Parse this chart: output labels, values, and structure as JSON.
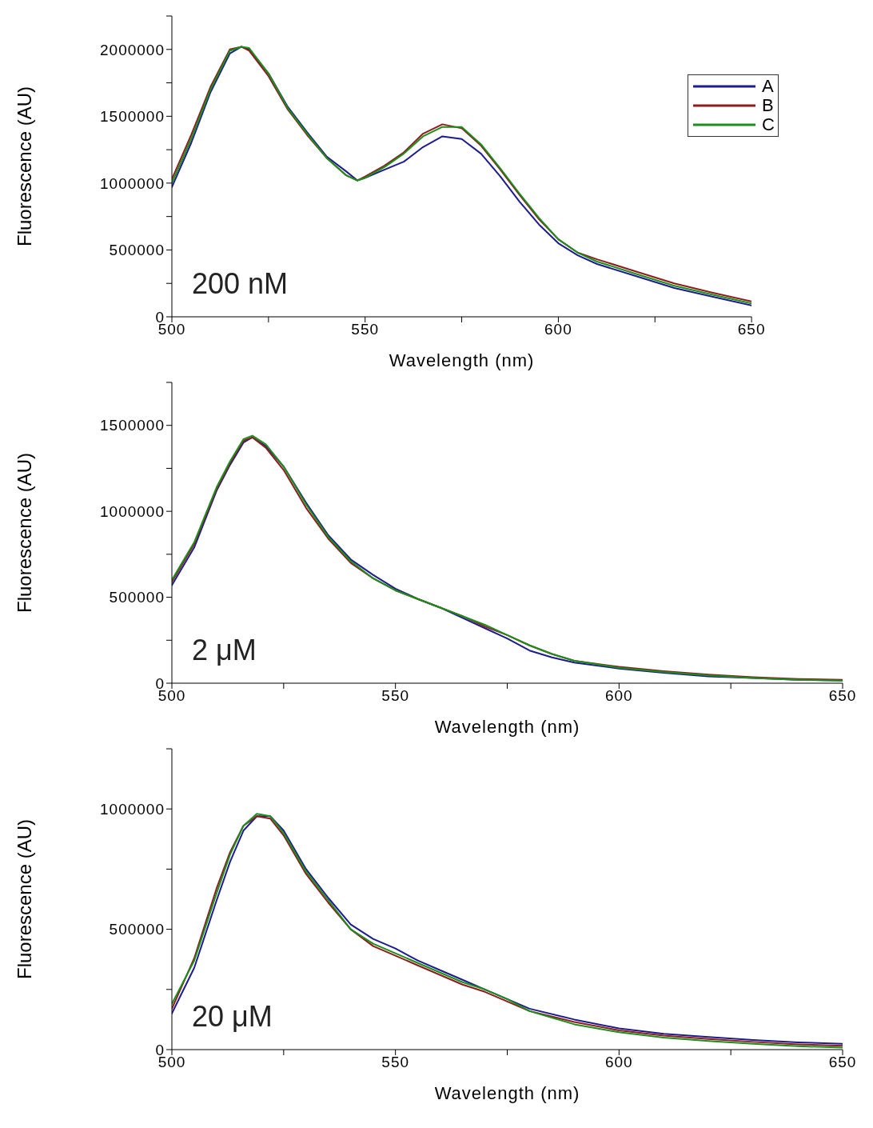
{
  "chart_data": [
    {
      "type": "line",
      "xlabel": "Wavelength (nm)",
      "ylabel": "Fluorescence (AU)",
      "annotations": [
        "200 nM"
      ],
      "legend": "top right",
      "grid": false,
      "line_style": "solid",
      "marker": "none",
      "xlim": [
        500,
        650
      ],
      "xticks": [
        500,
        {
          "value": 525,
          "label": null
        },
        550,
        {
          "value": 575,
          "label": null
        },
        600,
        {
          "value": 625,
          "label": null
        },
        650
      ],
      "ylim": [
        0,
        2250000
      ],
      "yticks": [
        0,
        {
          "value": 250000,
          "label": null
        },
        500000,
        {
          "value": 750000,
          "label": null
        },
        1000000,
        {
          "value": 1250000,
          "label": null
        },
        1500000,
        {
          "value": 1750000,
          "label": null
        },
        2000000,
        {
          "value": 2250000,
          "label": null
        }
      ],
      "x": [
        500,
        505,
        510,
        515,
        518,
        520,
        525,
        530,
        535,
        540,
        545,
        548,
        550,
        555,
        560,
        565,
        570,
        575,
        580,
        585,
        590,
        595,
        600,
        605,
        610,
        620,
        630,
        640,
        650
      ],
      "series": [
        {
          "name": "A",
          "color": "#1c1c8e",
          "values": [
            970000,
            1300000,
            1680000,
            1970000,
            2020000,
            2000000,
            1820000,
            1570000,
            1380000,
            1200000,
            1090000,
            1020000,
            1040000,
            1100000,
            1160000,
            1270000,
            1350000,
            1330000,
            1220000,
            1050000,
            860000,
            690000,
            550000,
            460000,
            395000,
            305000,
            215000,
            150000,
            85000
          ]
        },
        {
          "name": "B",
          "color": "#8e1c1c",
          "values": [
            1030000,
            1360000,
            1720000,
            2000000,
            2020000,
            1990000,
            1800000,
            1550000,
            1360000,
            1190000,
            1060000,
            1020000,
            1050000,
            1130000,
            1230000,
            1370000,
            1440000,
            1410000,
            1280000,
            1100000,
            910000,
            730000,
            580000,
            480000,
            430000,
            340000,
            250000,
            180000,
            115000
          ]
        },
        {
          "name": "C",
          "color": "#1c8e1c",
          "values": [
            1000000,
            1330000,
            1700000,
            1990000,
            2020000,
            2010000,
            1820000,
            1560000,
            1370000,
            1190000,
            1060000,
            1020000,
            1040000,
            1120000,
            1220000,
            1350000,
            1420000,
            1420000,
            1290000,
            1110000,
            920000,
            740000,
            580000,
            480000,
            413000,
            322000,
            232000,
            165000,
            100000
          ]
        }
      ]
    },
    {
      "type": "line",
      "xlabel": "Wavelength (nm)",
      "ylabel": "Fluorescence (AU)",
      "annotations": [
        "2 μM"
      ],
      "grid": false,
      "line_style": "solid",
      "marker": "none",
      "xlim": [
        500,
        650
      ],
      "xticks": [
        500,
        {
          "value": 525,
          "label": null
        },
        550,
        {
          "value": 575,
          "label": null
        },
        600,
        {
          "value": 625,
          "label": null
        },
        650
      ],
      "ylim": [
        0,
        1750000
      ],
      "yticks": [
        0,
        {
          "value": 250000,
          "label": null
        },
        500000,
        {
          "value": 750000,
          "label": null
        },
        1000000,
        {
          "value": 1250000,
          "label": null
        },
        1500000,
        {
          "value": 1750000,
          "label": null
        }
      ],
      "x": [
        500,
        505,
        510,
        513,
        516,
        518,
        521,
        525,
        530,
        535,
        540,
        545,
        550,
        555,
        560,
        565,
        570,
        575,
        580,
        585,
        590,
        600,
        610,
        620,
        630,
        640,
        650
      ],
      "series": [
        {
          "color": "#1c1c8e",
          "values": [
            570000,
            790000,
            1120000,
            1270000,
            1400000,
            1430000,
            1380000,
            1260000,
            1050000,
            860000,
            720000,
            630000,
            550000,
            490000,
            440000,
            380000,
            320000,
            260000,
            190000,
            150000,
            120000,
            85000,
            60000,
            40000,
            30000,
            20000,
            15000
          ]
        },
        {
          "color": "#8e1c1c",
          "values": [
            590000,
            810000,
            1130000,
            1280000,
            1410000,
            1430000,
            1370000,
            1240000,
            1020000,
            840000,
            700000,
            610000,
            540000,
            490000,
            440000,
            390000,
            330000,
            280000,
            220000,
            170000,
            130000,
            95000,
            70000,
            50000,
            35000,
            25000,
            20000
          ]
        },
        {
          "color": "#1c8e1c",
          "values": [
            600000,
            820000,
            1140000,
            1290000,
            1420000,
            1440000,
            1390000,
            1260000,
            1040000,
            850000,
            710000,
            610000,
            540000,
            490000,
            440000,
            390000,
            340000,
            280000,
            220000,
            170000,
            130000,
            90000,
            65000,
            45000,
            30000,
            20000,
            15000
          ]
        }
      ]
    },
    {
      "type": "line",
      "xlabel": "Wavelength (nm)",
      "ylabel": "Fluorescence (AU)",
      "annotations": [
        "20 μM"
      ],
      "grid": false,
      "line_style": "solid",
      "marker": "none",
      "xlim": [
        500,
        650
      ],
      "xticks": [
        500,
        {
          "value": 525,
          "label": null
        },
        550,
        {
          "value": 575,
          "label": null
        },
        600,
        {
          "value": 625,
          "label": null
        },
        650
      ],
      "ylim": [
        0,
        1250000
      ],
      "yticks": [
        0,
        {
          "value": 250000,
          "label": null
        },
        500000,
        {
          "value": 750000,
          "label": null
        },
        1000000,
        {
          "value": 1250000,
          "label": null
        }
      ],
      "x": [
        500,
        505,
        510,
        513,
        516,
        519,
        522,
        525,
        530,
        535,
        540,
        545,
        550,
        555,
        560,
        565,
        570,
        575,
        580,
        590,
        600,
        610,
        620,
        630,
        640,
        650
      ],
      "series": [
        {
          "color": "#1c1c8e",
          "values": [
            150000,
            340000,
            620000,
            780000,
            910000,
            970000,
            970000,
            910000,
            750000,
            630000,
            520000,
            460000,
            420000,
            370000,
            330000,
            290000,
            250000,
            210000,
            170000,
            125000,
            88000,
            66000,
            52000,
            40000,
            30000,
            24000
          ]
        },
        {
          "color": "#8e1c1c",
          "values": [
            170000,
            380000,
            670000,
            820000,
            930000,
            970000,
            960000,
            890000,
            730000,
            610000,
            500000,
            430000,
            390000,
            350000,
            310000,
            270000,
            240000,
            200000,
            160000,
            115000,
            80000,
            58000,
            44000,
            32000,
            22000,
            16000
          ]
        },
        {
          "color": "#1c8e1c",
          "values": [
            190000,
            370000,
            650000,
            810000,
            930000,
            980000,
            970000,
            900000,
            740000,
            620000,
            500000,
            440000,
            400000,
            360000,
            320000,
            280000,
            250000,
            210000,
            160000,
            105000,
            72000,
            50000,
            36000,
            24000,
            14000,
            8000
          ]
        }
      ]
    }
  ]
}
